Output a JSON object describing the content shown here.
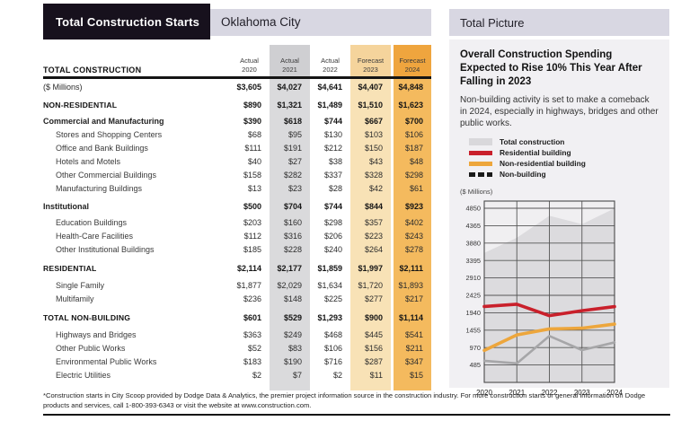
{
  "header": {
    "title": "Total Construction Starts",
    "city": "Oklahoma City"
  },
  "table": {
    "row_header_label": "TOTAL CONSTRUCTION",
    "columns": [
      {
        "line1": "Actual",
        "line2": "2020",
        "band": "none"
      },
      {
        "line1": "Actual",
        "line2": "2021",
        "band": "gray"
      },
      {
        "line1": "Actual",
        "line2": "2022",
        "band": "none"
      },
      {
        "line1": "Forecast",
        "line2": "2023",
        "band": "lt"
      },
      {
        "line1": "Forecast",
        "line2": "2024",
        "band": "or"
      }
    ],
    "rows": [
      {
        "label": "($ Millions)",
        "style": "plain",
        "gap": 2,
        "bold_values": true,
        "values": [
          "$3,605",
          "$4,027",
          "$4,641",
          "$4,407",
          "$4,848"
        ]
      },
      {
        "label": "NON-RESIDENTIAL",
        "style": "caps",
        "gap": 5,
        "bold_values": true,
        "values": [
          "$890",
          "$1,321",
          "$1,489",
          "$1,510",
          "$1,623"
        ]
      },
      {
        "label": "Commercial and Manufacturing",
        "style": "group",
        "gap": 3,
        "bold_values": true,
        "values": [
          "$390",
          "$618",
          "$744",
          "$667",
          "$700"
        ]
      },
      {
        "label": "Stores and Shopping Centers",
        "style": "child",
        "gap": 0,
        "bold_values": false,
        "values": [
          "$68",
          "$95",
          "$130",
          "$103",
          "$106"
        ]
      },
      {
        "label": "Office and Bank Buildings",
        "style": "child",
        "gap": 0,
        "bold_values": false,
        "values": [
          "$111",
          "$191",
          "$212",
          "$150",
          "$187"
        ]
      },
      {
        "label": "Hotels and Motels",
        "style": "child",
        "gap": 0,
        "bold_values": false,
        "values": [
          "$40",
          "$27",
          "$38",
          "$43",
          "$48"
        ]
      },
      {
        "label": "Other Commercial Buildings",
        "style": "child",
        "gap": 0,
        "bold_values": false,
        "values": [
          "$158",
          "$282",
          "$337",
          "$328",
          "$298"
        ]
      },
      {
        "label": "Manufacturing Buildings",
        "style": "child",
        "gap": 0,
        "bold_values": false,
        "values": [
          "$13",
          "$23",
          "$28",
          "$42",
          "$61"
        ]
      },
      {
        "label": "Institutional",
        "style": "group",
        "gap": 5,
        "bold_values": true,
        "values": [
          "$500",
          "$704",
          "$744",
          "$844",
          "$923"
        ]
      },
      {
        "label": "Education Buildings",
        "style": "child",
        "gap": 3,
        "bold_values": false,
        "values": [
          "$203",
          "$160",
          "$298",
          "$357",
          "$402"
        ]
      },
      {
        "label": "Health-Care Facilities",
        "style": "child",
        "gap": 0,
        "bold_values": false,
        "values": [
          "$112",
          "$316",
          "$206",
          "$223",
          "$243"
        ]
      },
      {
        "label": "Other Institutional Buildings",
        "style": "child",
        "gap": 0,
        "bold_values": false,
        "values": [
          "$185",
          "$228",
          "$240",
          "$264",
          "$278"
        ]
      },
      {
        "label": "RESIDENTIAL",
        "style": "caps",
        "gap": 6,
        "bold_values": true,
        "values": [
          "$2,114",
          "$2,177",
          "$1,859",
          "$1,997",
          "$2,111"
        ]
      },
      {
        "label": "Single Family",
        "style": "child",
        "gap": 4,
        "bold_values": false,
        "values": [
          "$1,877",
          "$2,029",
          "$1,634",
          "$1,720",
          "$1,893"
        ]
      },
      {
        "label": "Multifamily",
        "style": "child",
        "gap": 0,
        "bold_values": false,
        "values": [
          "$236",
          "$148",
          "$225",
          "$277",
          "$217"
        ]
      },
      {
        "label": "TOTAL NON-BUILDING",
        "style": "caps",
        "gap": 6,
        "bold_values": true,
        "values": [
          "$601",
          "$529",
          "$1,293",
          "$900",
          "$1,114"
        ]
      },
      {
        "label": "Highways and Bridges",
        "style": "child",
        "gap": 4,
        "bold_values": false,
        "values": [
          "$363",
          "$249",
          "$468",
          "$445",
          "$541"
        ]
      },
      {
        "label": "Other Public Works",
        "style": "child",
        "gap": 0,
        "bold_values": false,
        "values": [
          "$52",
          "$83",
          "$106",
          "$156",
          "$211"
        ]
      },
      {
        "label": "Environmental Public Works",
        "style": "child",
        "gap": 0,
        "bold_values": false,
        "values": [
          "$183",
          "$190",
          "$716",
          "$287",
          "$347"
        ]
      },
      {
        "label": "Electric Utilities",
        "style": "child",
        "gap": 0,
        "bold_values": false,
        "values": [
          "$2",
          "$7",
          "$2",
          "$11",
          "$15"
        ]
      }
    ]
  },
  "right_panel": {
    "title": "Total Picture",
    "heading": "Overall Construction Spending Expected to Rise 10% This Year After Falling in 2023",
    "body": "Non-building activity is set to make a comeback in 2024, especially in highways, bridges and other public works.",
    "units_label": "($ Millions)",
    "legend": [
      {
        "label": "Total construction",
        "swatch": "area",
        "color": "#d9d8db"
      },
      {
        "label": "Residential building",
        "swatch": "line",
        "color": "#c9202b"
      },
      {
        "label": "Non-residential building",
        "swatch": "line",
        "color": "#eda63c"
      },
      {
        "label": "Non-building",
        "swatch": "dashed",
        "color": "#1a1a1a"
      }
    ]
  },
  "chart_data": {
    "type": "line",
    "title": "",
    "xlabel": "",
    "ylabel": "($ Millions)",
    "x": [
      2020,
      2021,
      2022,
      2023,
      2024
    ],
    "series": [
      {
        "name": "Total construction",
        "type": "area",
        "color": "#dcdbde",
        "values": [
          3605,
          4027,
          4641,
          4407,
          4848
        ]
      },
      {
        "name": "Non-building",
        "type": "line",
        "color": "#a6a6a8",
        "values": [
          601,
          529,
          1293,
          900,
          1114
        ]
      },
      {
        "name": "Non-residential building",
        "type": "line",
        "color": "#eda63c",
        "values": [
          890,
          1321,
          1489,
          1510,
          1623
        ]
      },
      {
        "name": "Residential building",
        "type": "line",
        "color": "#c9202b",
        "values": [
          2114,
          2177,
          1859,
          1997,
          2111
        ]
      }
    ],
    "yticks": [
      485,
      970,
      1455,
      1940,
      2425,
      2910,
      3395,
      3880,
      4365,
      4850
    ],
    "ylim": [
      0,
      5050
    ],
    "grid": true,
    "legend_position": "above"
  },
  "footnote": "*Construction starts in City Scoop provided by Dodge Data & Analytics, the premier project information source in the construction industry. For more construction starts or general information on Dodge products and services, call 1-800-393-6343 or visit the website at www.construction.com.",
  "colors": {
    "header_black": "#17111d",
    "accent_lavender": "#d8d7e2",
    "band_gray": "#dadadc",
    "band_light_orange": "#f8e2b6",
    "band_orange": "#f4ba5e",
    "residential_red": "#c9202b",
    "non_residential_orange": "#eda63c",
    "panel_bg": "#f1f0f3"
  }
}
